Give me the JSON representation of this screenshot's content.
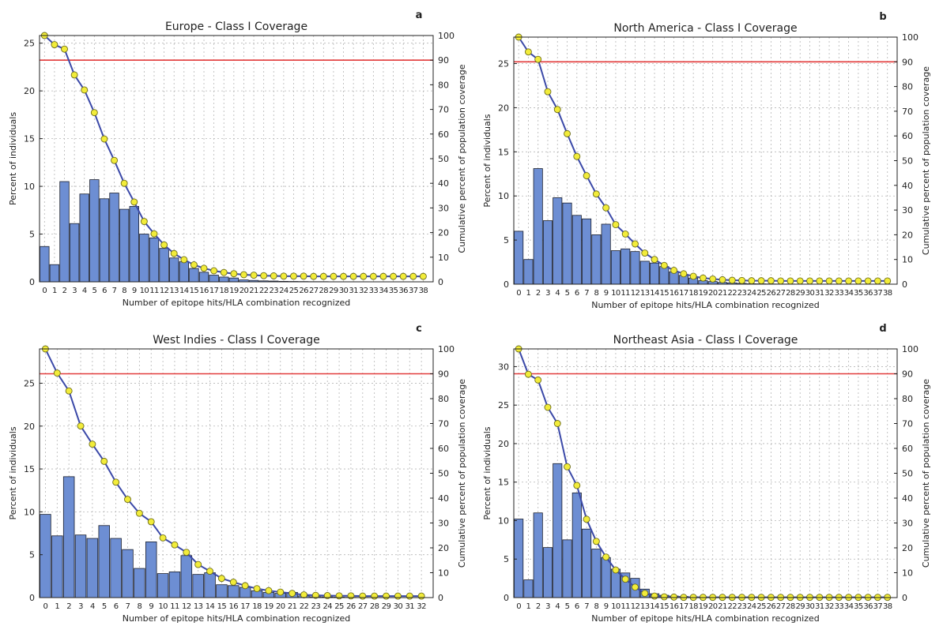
{
  "figure": {
    "chart_data": [
      {
        "type": "bar",
        "panel_letter": "a",
        "title": "Europe - Class I Coverage",
        "xlabel": "Number of epitope hits/HLA combination recognized",
        "ylabel": "Percent of individuals",
        "y2label": "Cumulative percent of population coverage",
        "ylim": [
          0,
          25.8
        ],
        "yticks": [
          0,
          5,
          10,
          15,
          20,
          25
        ],
        "y2lim": [
          0,
          100
        ],
        "y2ticks": [
          0,
          10,
          20,
          30,
          40,
          50,
          60,
          70,
          80,
          90,
          100
        ],
        "threshold_line": 90,
        "grid": true,
        "categories": [
          "0",
          "1",
          "2",
          "3",
          "4",
          "5",
          "6",
          "7",
          "8",
          "9",
          "10",
          "11",
          "12",
          "13",
          "14",
          "15",
          "16",
          "17",
          "18",
          "19",
          "20",
          "21",
          "22",
          "23",
          "24",
          "25",
          "26",
          "27",
          "28",
          "29",
          "30",
          "31",
          "32",
          "33",
          "34",
          "35",
          "36",
          "37",
          "38"
        ],
        "values": [
          3.7,
          1.8,
          10.5,
          6.1,
          9.2,
          10.7,
          8.7,
          9.3,
          7.6,
          7.9,
          5.0,
          4.6,
          3.5,
          2.5,
          2.1,
          1.4,
          1.0,
          0.7,
          0.5,
          0.4,
          0.2,
          0.15,
          0.1,
          0.08,
          0.05,
          0.04,
          0.03,
          0.02,
          0.02,
          0.01,
          0.01,
          0.01,
          0.01,
          0.0,
          0.0,
          0.0,
          0.0,
          0.0,
          0.0
        ],
        "cumulative": [
          100,
          96.3,
          94.5,
          84,
          77.9,
          68.7,
          58,
          49.3,
          40,
          32.4,
          24.5,
          19.5,
          15,
          11.5,
          9,
          6.9,
          5.5,
          4.5,
          3.8,
          3.3,
          2.9,
          2.7,
          2.5,
          2.4,
          2.3,
          2.3,
          2.3,
          2.2,
          2.2,
          2.2,
          2.2,
          2.2,
          2.2,
          2.2,
          2.2,
          2.2,
          2.2,
          2.2,
          2.2
        ]
      },
      {
        "type": "bar",
        "panel_letter": "b",
        "title": "North America - Class I Coverage",
        "xlabel": "Number of epitope hits/HLA combination recognized",
        "ylabel": "Percent of individuals",
        "y2label": "Cumulative percent of population coverage",
        "ylim": [
          0,
          28
        ],
        "yticks": [
          0,
          5,
          10,
          15,
          20,
          25
        ],
        "y2lim": [
          0,
          100
        ],
        "y2ticks": [
          0,
          10,
          20,
          30,
          40,
          50,
          60,
          70,
          80,
          90,
          100
        ],
        "threshold_line": 90,
        "grid": true,
        "categories": [
          "0",
          "1",
          "2",
          "3",
          "4",
          "5",
          "6",
          "7",
          "8",
          "9",
          "10",
          "11",
          "12",
          "13",
          "14",
          "15",
          "16",
          "17",
          "18",
          "19",
          "20",
          "21",
          "22",
          "23",
          "24",
          "25",
          "26",
          "27",
          "28",
          "29",
          "30",
          "31",
          "32",
          "33",
          "34",
          "35",
          "36",
          "37",
          "38"
        ],
        "values": [
          6.0,
          2.8,
          13.1,
          7.2,
          9.8,
          9.2,
          7.8,
          7.4,
          5.6,
          6.8,
          3.8,
          4.0,
          3.7,
          2.6,
          2.4,
          2.0,
          1.4,
          1.0,
          0.7,
          0.4,
          0.3,
          0.2,
          0.15,
          0.1,
          0.05,
          0.04,
          0.03,
          0.02,
          0.02,
          0.01,
          0.01,
          0.01,
          0.01,
          0.0,
          0.0,
          0.0,
          0.0,
          0.0,
          0.0
        ],
        "cumulative": [
          100,
          94,
          91,
          77.9,
          70.7,
          60.9,
          51.7,
          43.9,
          36.5,
          30.9,
          24.1,
          20.3,
          16.3,
          12.6,
          10,
          7.6,
          5.6,
          4.2,
          3.2,
          2.5,
          2.1,
          1.8,
          1.6,
          1.5,
          1.4,
          1.4,
          1.4,
          1.3,
          1.3,
          1.3,
          1.3,
          1.3,
          1.3,
          1.3,
          1.3,
          1.3,
          1.3,
          1.3,
          1.3
        ]
      },
      {
        "type": "bar",
        "panel_letter": "c",
        "title": "West Indies - Class I Coverage",
        "xlabel": "Number of epitope hits/HLA combination recognized",
        "ylabel": "Percent of individuals",
        "y2label": "Cumulative percent of population coverage",
        "ylim": [
          0,
          29
        ],
        "yticks": [
          0,
          5,
          10,
          15,
          20,
          25
        ],
        "y2lim": [
          0,
          100
        ],
        "y2ticks": [
          0,
          10,
          20,
          30,
          40,
          50,
          60,
          70,
          80,
          90,
          100
        ],
        "threshold_line": 90,
        "grid": true,
        "categories": [
          "0",
          "1",
          "2",
          "3",
          "4",
          "5",
          "6",
          "7",
          "8",
          "9",
          "10",
          "11",
          "12",
          "13",
          "14",
          "15",
          "16",
          "17",
          "18",
          "19",
          "20",
          "21",
          "22",
          "23",
          "24",
          "25",
          "26",
          "27",
          "28",
          "29",
          "30",
          "31",
          "32"
        ],
        "values": [
          9.7,
          7.2,
          14.1,
          7.3,
          6.9,
          8.4,
          6.9,
          5.6,
          3.4,
          6.5,
          2.8,
          3.0,
          4.9,
          2.7,
          2.9,
          1.5,
          1.4,
          1.2,
          0.8,
          0.6,
          0.5,
          0.6,
          0.2,
          0.1,
          0.08,
          0.05,
          0.03,
          0.02,
          0.01,
          0.01,
          0.0,
          0.0,
          0.0
        ],
        "cumulative": [
          100,
          90.3,
          83.1,
          69,
          61.7,
          54.8,
          46.4,
          39.5,
          33.9,
          30.5,
          24,
          21.2,
          18.2,
          13.3,
          10.6,
          7.7,
          6.2,
          4.8,
          3.6,
          2.8,
          2.2,
          1.7,
          1.1,
          0.9,
          0.8,
          0.7,
          0.7,
          0.6,
          0.6,
          0.6,
          0.6,
          0.6,
          0.6
        ]
      },
      {
        "type": "bar",
        "panel_letter": "d",
        "title": "Northeast Asia - Class I Coverage",
        "xlabel": "Number of epitope hits/HLA combination recognized",
        "ylabel": "Percent of individuals",
        "y2label": "Cumulative percent of population coverage",
        "ylim": [
          0,
          32.3
        ],
        "yticks": [
          0,
          5,
          10,
          15,
          20,
          25,
          30
        ],
        "y2lim": [
          0,
          100
        ],
        "y2ticks": [
          0,
          10,
          20,
          30,
          40,
          50,
          60,
          70,
          80,
          90,
          100
        ],
        "threshold_line": 90,
        "grid": true,
        "categories": [
          "0",
          "1",
          "2",
          "3",
          "4",
          "5",
          "6",
          "7",
          "8",
          "9",
          "10",
          "11",
          "12",
          "13",
          "14",
          "15",
          "16",
          "17",
          "18",
          "19",
          "20",
          "21",
          "22",
          "23",
          "24",
          "25",
          "26",
          "27",
          "28",
          "29",
          "30",
          "31",
          "32",
          "33",
          "34",
          "35",
          "36",
          "37",
          "38"
        ],
        "values": [
          10.2,
          2.3,
          11.0,
          6.5,
          17.4,
          7.5,
          13.6,
          8.9,
          6.3,
          5.2,
          3.7,
          3.2,
          2.5,
          1.1,
          0.5,
          0.3,
          0.2,
          0.15,
          0.1,
          0.05,
          0.04,
          0.03,
          0.02,
          0.02,
          0.01,
          0.01,
          0.01,
          0.0,
          0.0,
          0.0,
          0.0,
          0.0,
          0.0,
          0.0,
          0.0,
          0.0,
          0.0,
          0.0,
          0.0
        ],
        "cumulative": [
          100,
          89.8,
          87.5,
          76.5,
          70,
          52.6,
          45.1,
          31.5,
          22.6,
          16.3,
          11.1,
          7.4,
          4.2,
          1.7,
          0.6,
          0.3,
          0.2,
          0.1,
          0.1,
          0.1,
          0.1,
          0.1,
          0.1,
          0.1,
          0.1,
          0.1,
          0.1,
          0.1,
          0.1,
          0.1,
          0.1,
          0.1,
          0.1,
          0.1,
          0.1,
          0.1,
          0.1,
          0.1,
          0.1
        ]
      }
    ]
  },
  "colors": {
    "bar_fill": "#6d8ed3",
    "bar_stroke": "#1a1f2e",
    "line": "#3b49a8",
    "marker_fill": "#f2ec3a",
    "marker_stroke": "#6d6d1a",
    "threshold": "#e23a3a",
    "grid": "#b5b5b5",
    "axis": "#222222"
  }
}
